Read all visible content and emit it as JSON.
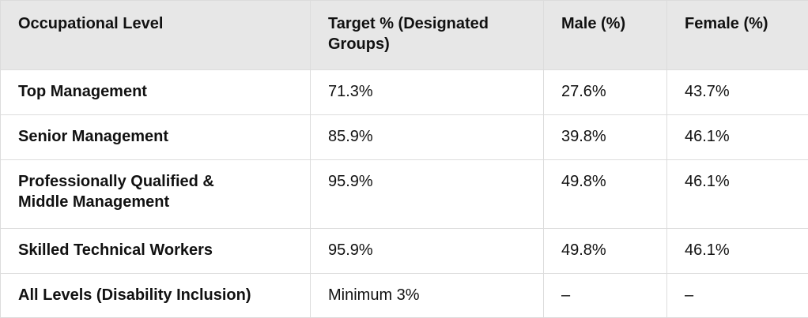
{
  "table": {
    "header": [
      "Occupational Level",
      "Target % (Designated Groups)",
      "Male (%)",
      "Female (%)"
    ],
    "rows": [
      [
        "Top Management",
        "71.3%",
        "27.6%",
        "43.7%"
      ],
      [
        "Senior Management",
        "85.9%",
        "39.8%",
        "46.1%"
      ],
      [
        "Professionally Qualified & Middle Management",
        "95.9%",
        "49.8%",
        "46.1%"
      ],
      [
        "Skilled Technical Workers",
        "95.9%",
        "49.8%",
        "46.1%"
      ],
      [
        "All Levels (Disability Inclusion)",
        "Minimum 3%",
        "–",
        "–"
      ]
    ]
  }
}
